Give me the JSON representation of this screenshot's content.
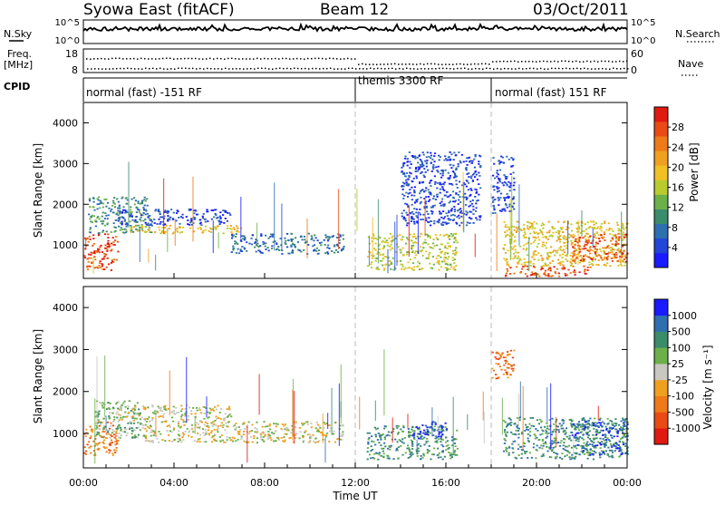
{
  "header": {
    "title": "Syowa East (fitACF)",
    "beam": "Beam 12",
    "date": "03/Oct/2011"
  },
  "strips": {
    "nsky_label": "N.Sky",
    "nsky_ticks": [
      "10^5",
      "10^0"
    ],
    "nsearch_label": "N.Search",
    "nsearch_ticks": [
      "10^5",
      "10^0"
    ],
    "freq_label_line1": "Freq.",
    "freq_label_line2": "[MHz]",
    "freq_ticks": [
      "18",
      "8"
    ],
    "nave_label": "Nave",
    "nave_ticks": [
      "60",
      "0"
    ],
    "cpid_label": "CPID",
    "cpid_segments": [
      {
        "label": "normal (fast) -151 RF",
        "start_h": 0,
        "end_h": 12
      },
      {
        "label": "themis 3300 RF",
        "start_h": 12,
        "end_h": 18
      },
      {
        "label": "normal (fast) 151 RF",
        "start_h": 18,
        "end_h": 24
      }
    ]
  },
  "chart_data": [
    {
      "type": "heatmap",
      "title": "",
      "xlabel": "Time UT",
      "ylabel": "Slant Range [km]",
      "xlim_hours": [
        0,
        24
      ],
      "ylim": [
        180,
        4500
      ],
      "x_ticks": [
        "00:00",
        "04:00",
        "08:00",
        "12:00",
        "16:00",
        "20:00",
        "00:00"
      ],
      "y_ticks": [
        1000,
        2000,
        3000,
        4000
      ],
      "colorbar": {
        "label": "Power [dB]",
        "ticks": [
          "28",
          "24",
          "20",
          "16",
          "12",
          "8",
          "4"
        ],
        "colors": [
          "#1a1aff",
          "#2146d8",
          "#2e6fb0",
          "#3a8c6a",
          "#6cb04a",
          "#b8cc2e",
          "#f0c024",
          "#f0a020",
          "#ee7a18",
          "#ea4a14",
          "#e01a10"
        ]
      },
      "regions": [
        {
          "t0": 0.0,
          "t1": 1.5,
          "r0": 400,
          "r1": 1300,
          "level": 9
        },
        {
          "t0": 0.2,
          "t1": 3.0,
          "r0": 1300,
          "r1": 2200,
          "level": 3
        },
        {
          "t0": 1.5,
          "t1": 6.5,
          "r0": 1500,
          "r1": 1900,
          "level": 1
        },
        {
          "t0": 2.0,
          "t1": 7.0,
          "r0": 1300,
          "r1": 1500,
          "level": 6
        },
        {
          "t0": 6.5,
          "t1": 11.5,
          "r0": 800,
          "r1": 1300,
          "level": 2
        },
        {
          "t0": 12.5,
          "t1": 16.5,
          "r0": 400,
          "r1": 1300,
          "level": 5
        },
        {
          "t0": 14.0,
          "t1": 17.5,
          "r0": 1500,
          "r1": 3300,
          "level": 1
        },
        {
          "t0": 18.0,
          "t1": 19.0,
          "r0": 1800,
          "r1": 3200,
          "level": 1
        },
        {
          "t0": 18.5,
          "t1": 22.5,
          "r0": 250,
          "r1": 500,
          "level": 9
        },
        {
          "t0": 18.5,
          "t1": 24.0,
          "r0": 500,
          "r1": 1600,
          "level": 6
        },
        {
          "t0": 21.5,
          "t1": 24.0,
          "r0": 600,
          "r1": 1300,
          "level": 9
        }
      ]
    },
    {
      "type": "heatmap",
      "title": "",
      "xlabel": "Time UT",
      "ylabel": "Slant Range [km]",
      "xlim_hours": [
        0,
        24
      ],
      "ylim": [
        180,
        4500
      ],
      "x_ticks": [
        "00:00",
        "04:00",
        "08:00",
        "12:00",
        "16:00",
        "20:00",
        "00:00"
      ],
      "y_ticks": [
        1000,
        2000,
        3000,
        4000
      ],
      "colorbar": {
        "label": "Velocity [m s⁻¹]",
        "ticks": [
          "1000",
          "500",
          "100",
          "25",
          "-25",
          "-100",
          "-500",
          "-1000"
        ],
        "colors": [
          "#e01a10",
          "#ea4a14",
          "#ee7a18",
          "#f0a020",
          "#c8c8c0",
          "#6cb04a",
          "#3a8c6a",
          "#2e6fb0",
          "#1a1aff"
        ]
      },
      "regions": [
        {
          "t0": 0.0,
          "t1": 1.5,
          "r0": 500,
          "r1": 1300,
          "level": 2
        },
        {
          "t0": 0.5,
          "t1": 2.5,
          "r0": 900,
          "r1": 1800,
          "level": 5
        },
        {
          "t0": 1.5,
          "t1": 6.5,
          "r0": 1300,
          "r1": 1700,
          "level": 4
        },
        {
          "t0": 2.5,
          "t1": 11.5,
          "r0": 800,
          "r1": 1300,
          "level": 4
        },
        {
          "t0": 12.5,
          "t1": 16.5,
          "r0": 400,
          "r1": 1200,
          "level": 6
        },
        {
          "t0": 14.5,
          "t1": 16.0,
          "r0": 900,
          "r1": 1300,
          "level": 8
        },
        {
          "t0": 18.0,
          "t1": 19.0,
          "r0": 2300,
          "r1": 3000,
          "level": 2
        },
        {
          "t0": 18.5,
          "t1": 24.0,
          "r0": 400,
          "r1": 1400,
          "level": 6
        },
        {
          "t0": 21.5,
          "t1": 24.0,
          "r0": 500,
          "r1": 1300,
          "level": 7
        }
      ]
    }
  ]
}
